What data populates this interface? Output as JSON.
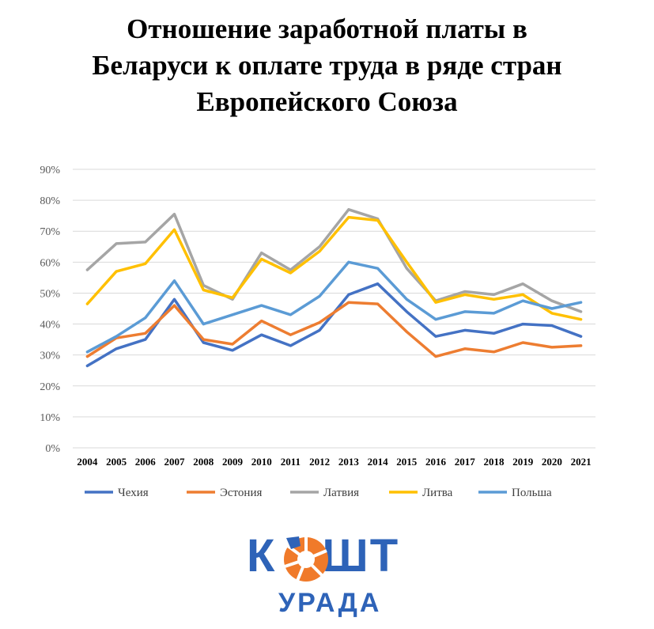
{
  "title_lines": [
    "Отношение заработной платы в",
    "Беларуси к оплате труда в ряде стран",
    "Европейского Союза"
  ],
  "logo": {
    "text_left": "К",
    "text_right": "ШТ",
    "subtitle": "УРАДА",
    "color": "#2e63b8",
    "accent": "#f07a2a"
  },
  "chart_data": {
    "type": "line",
    "title": "Отношение заработной платы в Беларуси к оплате труда в ряде стран Европейского Союза",
    "x": [
      "2004",
      "2005",
      "2006",
      "2007",
      "2008",
      "2009",
      "2010",
      "2011",
      "2012",
      "2013",
      "2014",
      "2015",
      "2016",
      "2017",
      "2018",
      "2019",
      "2020",
      "2021"
    ],
    "ylim": [
      0,
      90
    ],
    "yticks": [
      "0%",
      "10%",
      "20%",
      "30%",
      "40%",
      "50%",
      "60%",
      "70%",
      "80%",
      "90%"
    ],
    "grid": true,
    "legend_position": "bottom",
    "series": [
      {
        "name": "Чехия",
        "color": "#4472c4",
        "values": [
          26.5,
          32,
          35,
          48,
          34,
          31.5,
          36.5,
          33,
          38,
          49.5,
          53,
          44,
          36,
          38,
          37,
          40,
          39.5,
          36
        ]
      },
      {
        "name": "Эстония",
        "color": "#ed7d31",
        "values": [
          29.5,
          35.5,
          37,
          46,
          35,
          33.5,
          41,
          36.5,
          40.5,
          47,
          46.5,
          37.5,
          29.5,
          32,
          31,
          34,
          32.5,
          33
        ]
      },
      {
        "name": "Латвия",
        "color": "#a5a5a5",
        "values": [
          57.5,
          66,
          66.5,
          75.5,
          52.5,
          48,
          63,
          57.5,
          65,
          77,
          74,
          58,
          47.5,
          50.5,
          49.5,
          53,
          47.5,
          44
        ]
      },
      {
        "name": "Литва",
        "color": "#ffc000",
        "values": [
          46.5,
          57,
          59.5,
          70.5,
          51,
          48.5,
          61,
          56.5,
          63.5,
          74.5,
          73.5,
          60,
          47,
          49.5,
          48,
          49.5,
          43.5,
          41.5
        ]
      },
      {
        "name": "Польша",
        "color": "#5b9bd5",
        "values": [
          31,
          36,
          42,
          54,
          40,
          43,
          46,
          43,
          49,
          60,
          58,
          48,
          41.5,
          44,
          43.5,
          47.5,
          45,
          47
        ]
      }
    ]
  }
}
